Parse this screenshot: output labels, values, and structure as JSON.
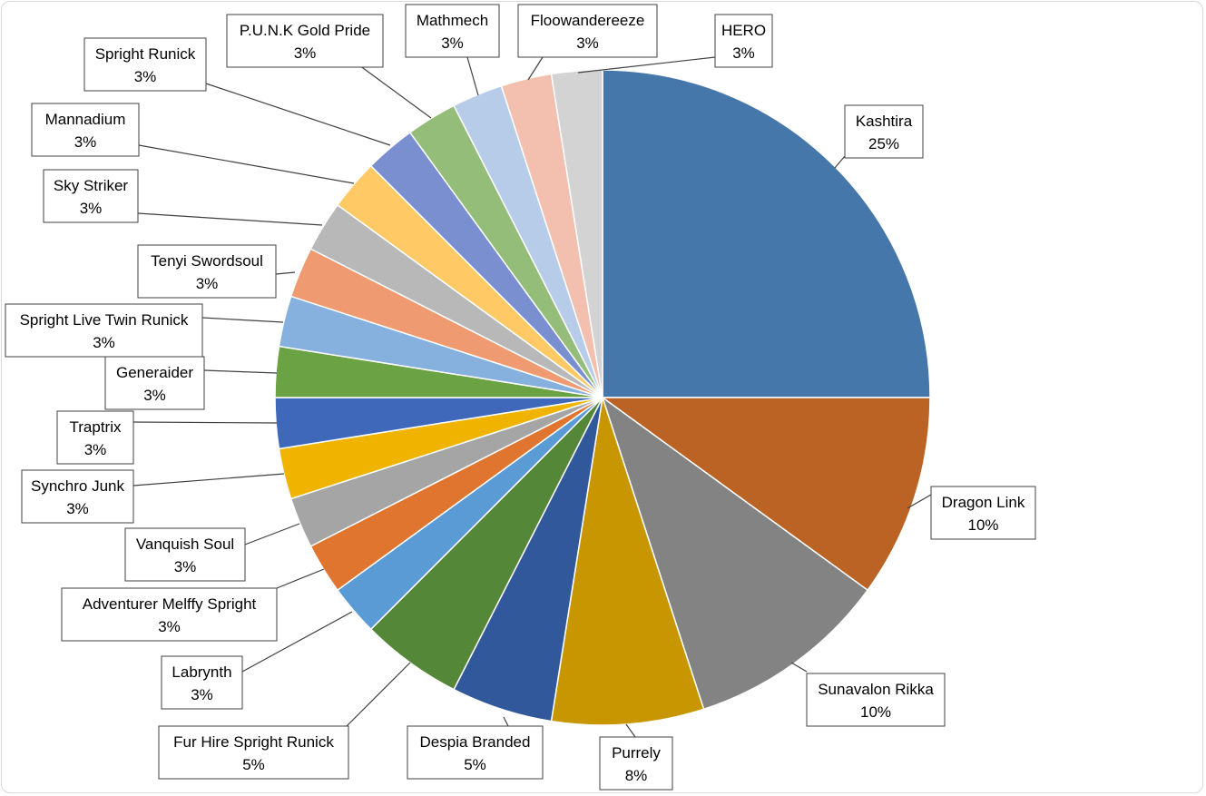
{
  "chart_data": {
    "type": "pie",
    "title": "",
    "slices": [
      {
        "label": "Kashtira",
        "value": 25,
        "pct_label": "25%",
        "color": "#4677aa"
      },
      {
        "label": "Dragon Link",
        "value": 10,
        "pct_label": "10%",
        "color": "#ba6324"
      },
      {
        "label": "Sunavalon Rikka",
        "value": 10,
        "pct_label": "10%",
        "color": "#838383"
      },
      {
        "label": "Purrely",
        "value": 7.5,
        "pct_label": "8%",
        "color": "#c89600"
      },
      {
        "label": "Despia Branded",
        "value": 5,
        "pct_label": "5%",
        "color": "#31589b"
      },
      {
        "label": "Fur Hire Spright Runick",
        "value": 5,
        "pct_label": "5%",
        "color": "#548838"
      },
      {
        "label": "Labrynth",
        "value": 2.5,
        "pct_label": "3%",
        "color": "#5b9bd5"
      },
      {
        "label": "Adventurer Melffy Spright",
        "value": 2.5,
        "pct_label": "3%",
        "color": "#e0752f"
      },
      {
        "label": "Vanquish Soul",
        "value": 2.5,
        "pct_label": "3%",
        "color": "#a5a5a5"
      },
      {
        "label": "Synchro Junk",
        "value": 2.5,
        "pct_label": "3%",
        "color": "#f0b400"
      },
      {
        "label": "Traptrix",
        "value": 2.5,
        "pct_label": "3%",
        "color": "#4068ba"
      },
      {
        "label": "Generaider",
        "value": 2.5,
        "pct_label": "3%",
        "color": "#6ba243"
      },
      {
        "label": "Spright Live Twin Runick",
        "value": 2.5,
        "pct_label": "3%",
        "color": "#86b0dd"
      },
      {
        "label": "Tenyi Swordsoul",
        "value": 2.5,
        "pct_label": "3%",
        "color": "#f09a72"
      },
      {
        "label": "Sky Striker",
        "value": 2.5,
        "pct_label": "3%",
        "color": "#b8b8b8"
      },
      {
        "label": "Mannadium",
        "value": 2.5,
        "pct_label": "3%",
        "color": "#ffc966"
      },
      {
        "label": "Spright Runick",
        "value": 2.5,
        "pct_label": "3%",
        "color": "#7a8fcf"
      },
      {
        "label": "P.U.N.K Gold Pride",
        "value": 2.5,
        "pct_label": "3%",
        "color": "#93bd78"
      },
      {
        "label": "Mathmech",
        "value": 2.5,
        "pct_label": "3%",
        "color": "#b7cce9"
      },
      {
        "label": "Floowandereeze",
        "value": 2.5,
        "pct_label": "3%",
        "color": "#f3c0b0"
      },
      {
        "label": "HERO",
        "value": 2.5,
        "pct_label": "3%",
        "color": "#d3d3d3"
      }
    ],
    "start_angle": "12 o'clock",
    "direction": "clockwise",
    "legend": "none",
    "data_labels": "callouts with category name and percent"
  }
}
